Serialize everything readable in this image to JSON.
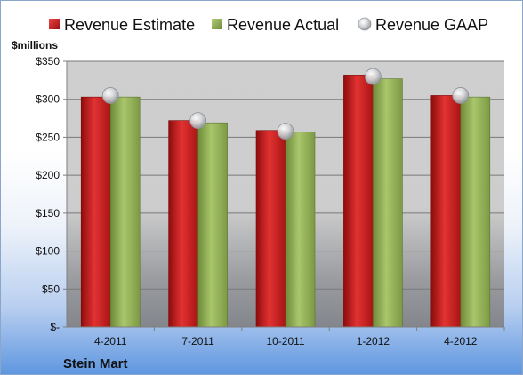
{
  "chart_data": {
    "type": "bar",
    "title": "",
    "ylabel": "$millions",
    "xlabel": "",
    "categories": [
      "4-2011",
      "7-2011",
      "10-2011",
      "1-2012",
      "4-2012"
    ],
    "series": [
      {
        "name": "Revenue Estimate",
        "kind": "bar",
        "color": "#cc2020",
        "values": [
          303,
          272,
          259,
          332,
          305
        ]
      },
      {
        "name": "Revenue Actual",
        "kind": "bar",
        "color": "#8fb04f",
        "values": [
          303,
          269,
          257,
          327,
          303
        ]
      },
      {
        "name": "Revenue GAAP",
        "kind": "marker",
        "color": "#c0c4c8",
        "values": [
          305,
          272,
          258,
          330,
          305
        ]
      }
    ],
    "ylim": [
      0,
      350
    ],
    "yticks": [
      0,
      50,
      100,
      150,
      200,
      250,
      300,
      350
    ],
    "ytick_labels": [
      "$-",
      "$50",
      "$100",
      "$150",
      "$200",
      "$250",
      "$300",
      "$350"
    ],
    "grid": true,
    "legend_position": "top"
  },
  "company": "Stein Mart"
}
